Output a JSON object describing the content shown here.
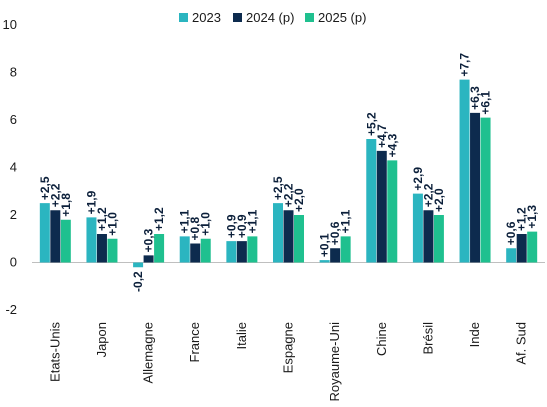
{
  "chart_data": {
    "type": "bar",
    "categories": [
      "Etats-Unis",
      "Japon",
      "Allemagne",
      "France",
      "Italie",
      "Espagne",
      "Royaume-Uni",
      "Chine",
      "Brésil",
      "Inde",
      "Af. Sud"
    ],
    "series": [
      {
        "name": "2023",
        "color": "#2bb5c0",
        "values": [
          2.5,
          1.9,
          -0.2,
          1.1,
          0.9,
          2.5,
          0.1,
          5.2,
          2.9,
          7.7,
          0.6
        ],
        "labels": [
          "+2,5",
          "+1,9",
          "-0,2",
          "+1,1",
          "+0,9",
          "+2,5",
          "+0,1",
          "+5,2",
          "+2,9",
          "+7,7",
          "+0,6"
        ]
      },
      {
        "name": "2024 (p)",
        "color": "#0d2b4e",
        "values": [
          2.2,
          1.2,
          0.3,
          0.8,
          0.9,
          2.2,
          0.6,
          4.7,
          2.2,
          6.3,
          1.2
        ],
        "labels": [
          "+2,2",
          "+1,2",
          "+0,3",
          "+0,8",
          "+0,9",
          "+2,2",
          "+0,6",
          "+4,7",
          "+2,2",
          "+6,3",
          "+1,2"
        ]
      },
      {
        "name": "2025 (p)",
        "color": "#1fc08f",
        "values": [
          1.8,
          1.0,
          1.2,
          1.0,
          1.1,
          2.0,
          1.1,
          4.3,
          2.0,
          6.1,
          1.3
        ],
        "labels": [
          "+1,8",
          "+1,0",
          "+1,2",
          "+1,0",
          "+1,1",
          "+2,0",
          "+1,1",
          "+4,3",
          "+2,0",
          "+6,1",
          "+1,3"
        ]
      }
    ],
    "yticks": [
      -2,
      0,
      2,
      4,
      6,
      8,
      10
    ],
    "ylim": [
      -2,
      10
    ],
    "grid": false,
    "legend": "top-center",
    "title": "",
    "xlabel": "",
    "ylabel": ""
  }
}
